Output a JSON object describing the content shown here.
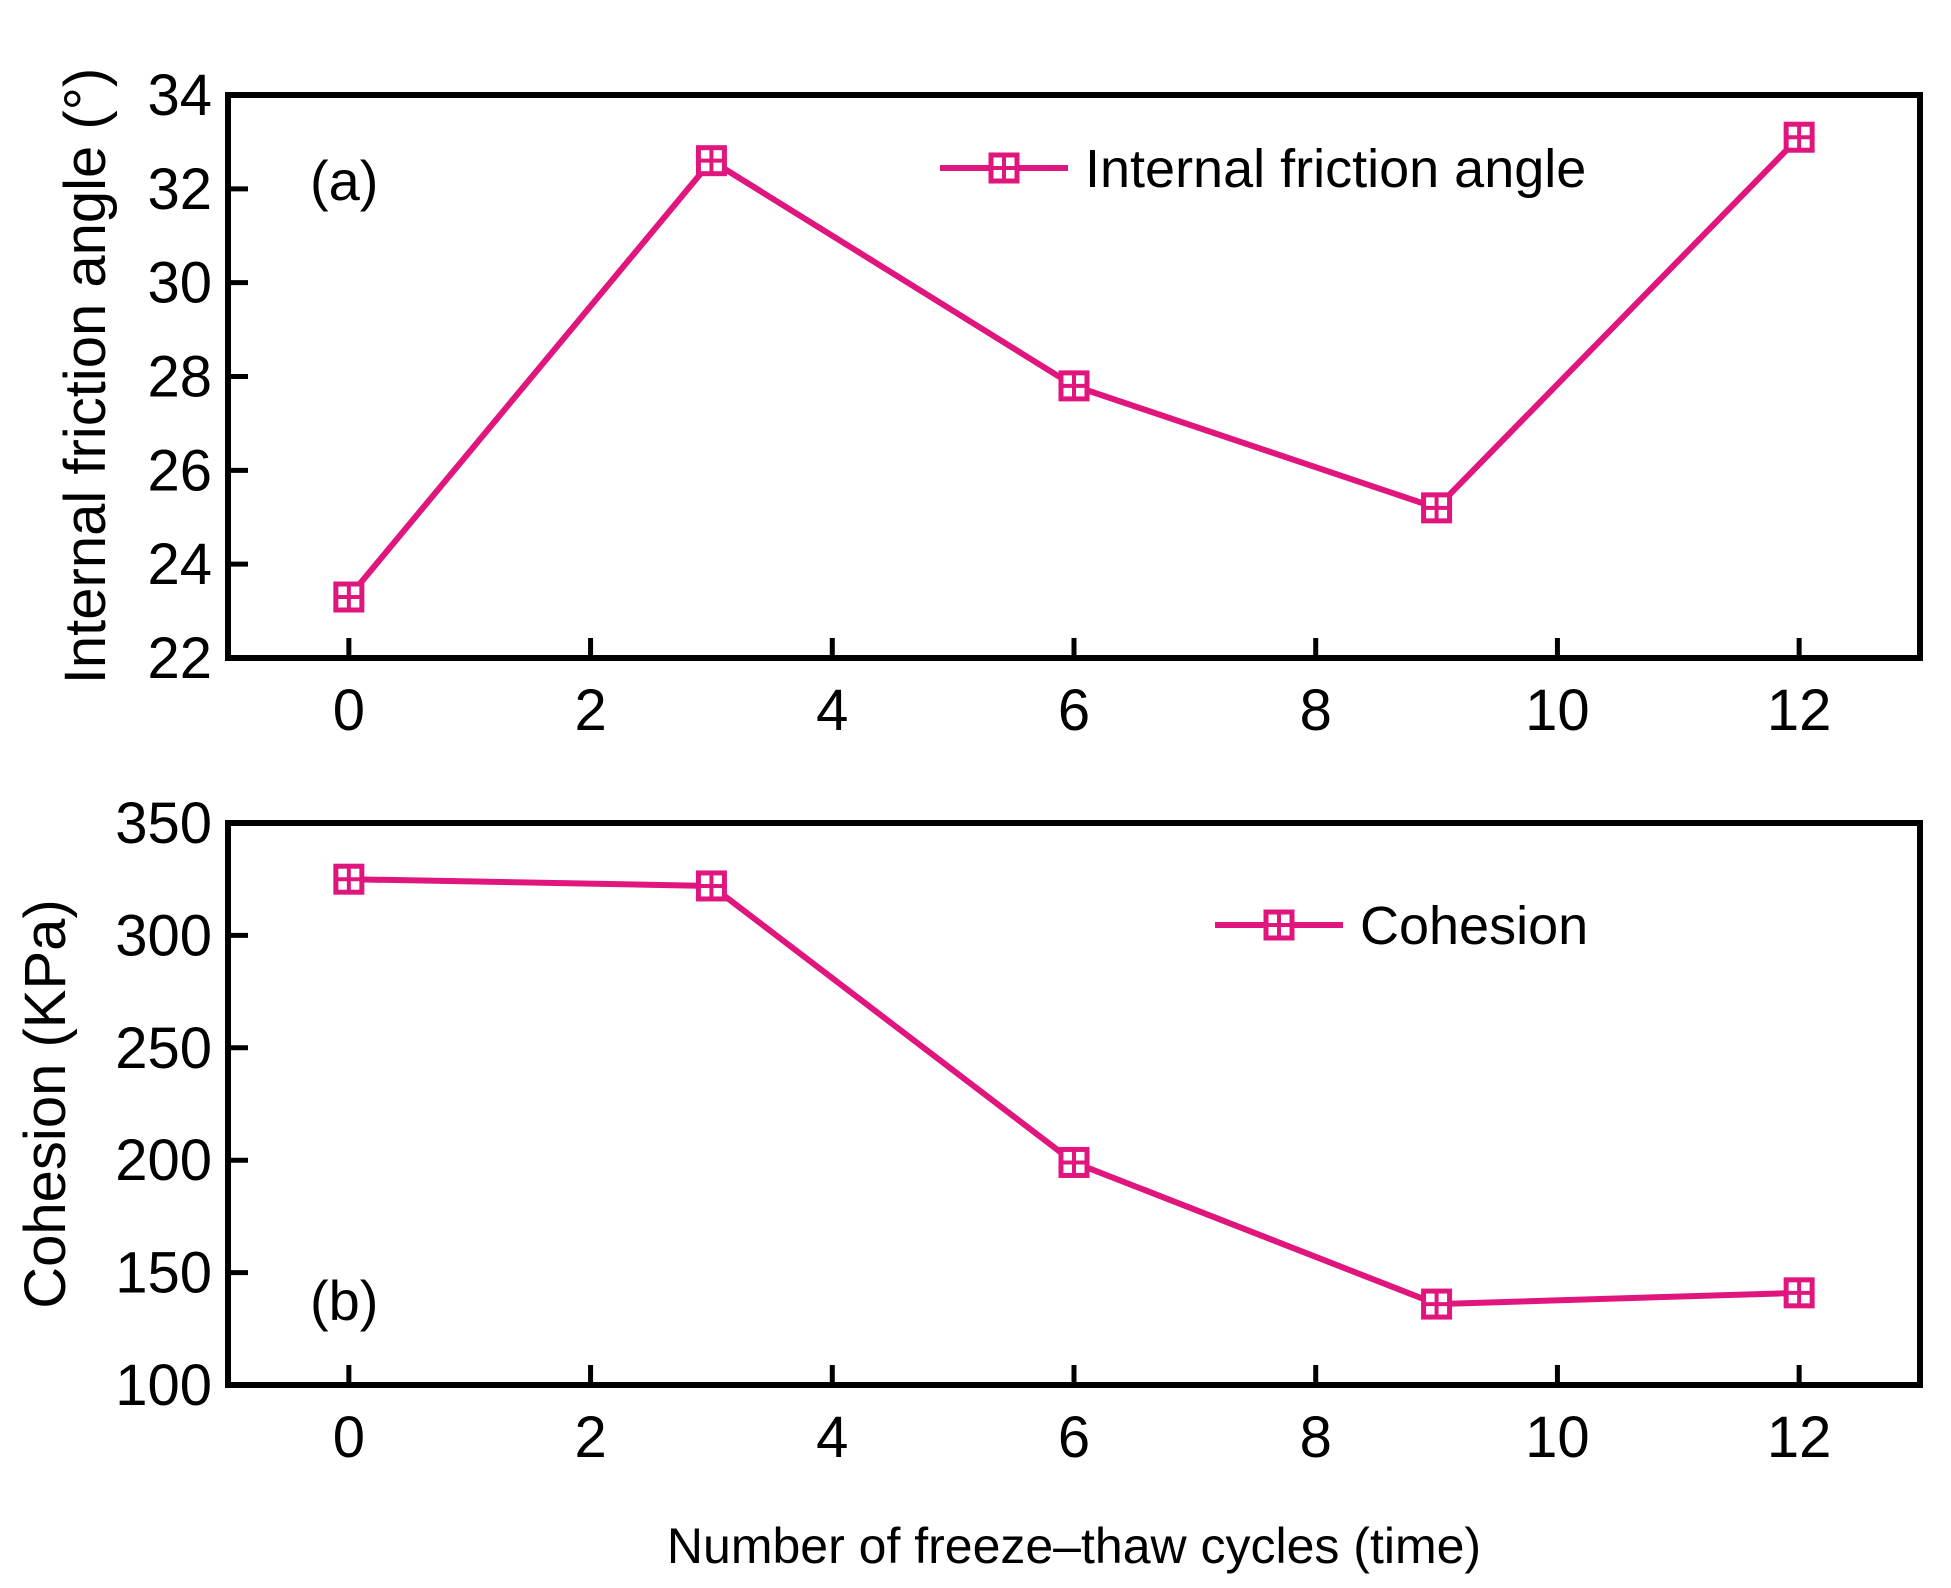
{
  "figure": {
    "xlabel": "Number of freeze–thaw cycles (time)"
  },
  "colors": {
    "series": "#e0157d",
    "axes": "#000000",
    "background": "#ffffff"
  },
  "chart_data": [
    {
      "type": "line",
      "panel_label": "(a)",
      "x": [
        0,
        3,
        6,
        9,
        12
      ],
      "series": [
        {
          "name": "Internal friction angle",
          "values": [
            23.3,
            32.6,
            27.8,
            25.2,
            33.1
          ]
        }
      ],
      "ylabel": "Internal friction angle (°)",
      "xlim": [
        -1,
        13
      ],
      "ylim": [
        22,
        34
      ],
      "xticks": [
        0,
        2,
        4,
        6,
        8,
        10,
        12
      ],
      "yticks": [
        22,
        24,
        26,
        28,
        30,
        32,
        34
      ],
      "marker": "square-with-cross",
      "grid": false,
      "legend_position": "top-right"
    },
    {
      "type": "line",
      "panel_label": "(b)",
      "x": [
        0,
        3,
        6,
        9,
        12
      ],
      "series": [
        {
          "name": "Cohesion",
          "values": [
            325,
            322,
            199,
            136,
            141
          ]
        }
      ],
      "ylabel": "Cohesion (KPa)",
      "xlim": [
        -1,
        13
      ],
      "ylim": [
        100,
        350
      ],
      "xticks": [
        0,
        2,
        4,
        6,
        8,
        10,
        12
      ],
      "yticks": [
        100,
        150,
        200,
        250,
        300,
        350
      ],
      "marker": "square-with-cross",
      "grid": false,
      "legend_position": "top-right"
    }
  ]
}
